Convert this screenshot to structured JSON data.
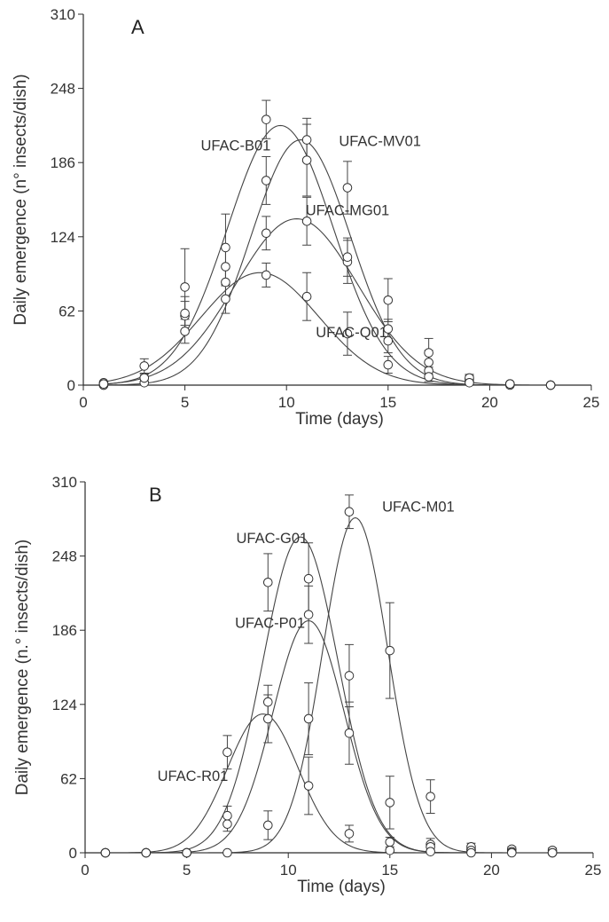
{
  "chart_data": [
    {
      "panel": "A",
      "type": "scatter",
      "xlabel": "Time (days)",
      "ylabel": "Daily emergence (n° insects/dish)",
      "xlim": [
        0,
        25
      ],
      "ylim": [
        0,
        310
      ],
      "xticks": [
        0,
        5,
        10,
        15,
        20,
        25
      ],
      "yticks": [
        0,
        62,
        124,
        186,
        248,
        310
      ],
      "grid": false,
      "legend": "none",
      "series": [
        {
          "name": "UFAC-B01",
          "peak": 217,
          "mu": 9.7,
          "sigma": 2.6,
          "label_at": [
            7.5,
            196
          ],
          "points": [
            {
              "x": 1,
              "y": 2,
              "err": 0
            },
            {
              "x": 3,
              "y": 16,
              "err": 6
            },
            {
              "x": 5,
              "y": 58,
              "err": 12
            },
            {
              "x": 7,
              "y": 115,
              "err": 28
            },
            {
              "x": 9,
              "y": 222,
              "err": 16
            },
            {
              "x": 11,
              "y": 188,
              "err": 30
            },
            {
              "x": 13,
              "y": 103,
              "err": 18
            },
            {
              "x": 15,
              "y": 47,
              "err": 8
            },
            {
              "x": 17,
              "y": 12,
              "err": 6
            },
            {
              "x": 19,
              "y": 3,
              "err": 2
            },
            {
              "x": 21,
              "y": 1,
              "err": 0
            },
            {
              "x": 23,
              "y": 0,
              "err": 0
            }
          ]
        },
        {
          "name": "UFAC-MV01",
          "peak": 205,
          "mu": 10.7,
          "sigma": 2.45,
          "label_at": [
            14.6,
            200
          ],
          "points": [
            {
              "x": 1,
              "y": 0,
              "err": 0
            },
            {
              "x": 3,
              "y": 2,
              "err": 3
            },
            {
              "x": 5,
              "y": 45,
              "err": 10
            },
            {
              "x": 7,
              "y": 86,
              "err": 14
            },
            {
              "x": 9,
              "y": 171,
              "err": 20
            },
            {
              "x": 11,
              "y": 205,
              "err": 18
            },
            {
              "x": 13,
              "y": 165,
              "err": 22
            },
            {
              "x": 15,
              "y": 71,
              "err": 18
            },
            {
              "x": 17,
              "y": 27,
              "err": 12
            },
            {
              "x": 19,
              "y": 5,
              "err": 3
            },
            {
              "x": 21,
              "y": 0,
              "err": 0
            },
            {
              "x": 23,
              "y": 0,
              "err": 0
            }
          ]
        },
        {
          "name": "UFAC-MG01",
          "peak": 139,
          "mu": 10.5,
          "sigma": 3.0,
          "label_at": [
            13.0,
            142
          ],
          "points": [
            {
              "x": 1,
              "y": 0,
              "err": 0
            },
            {
              "x": 3,
              "y": 6,
              "err": 4
            },
            {
              "x": 5,
              "y": 82,
              "err": 32
            },
            {
              "x": 7,
              "y": 99,
              "err": 16
            },
            {
              "x": 9,
              "y": 127,
              "err": 14
            },
            {
              "x": 11,
              "y": 137,
              "err": 20
            },
            {
              "x": 13,
              "y": 107,
              "err": 16
            },
            {
              "x": 15,
              "y": 37,
              "err": 10
            },
            {
              "x": 17,
              "y": 19,
              "err": 10
            },
            {
              "x": 19,
              "y": 6,
              "err": 3
            },
            {
              "x": 21,
              "y": 1,
              "err": 0
            },
            {
              "x": 23,
              "y": 0,
              "err": 0
            }
          ]
        },
        {
          "name": "UFAC-Q01",
          "peak": 94,
          "mu": 8.7,
          "sigma": 2.9,
          "label_at": [
            13.2,
            40
          ],
          "points": [
            {
              "x": 1,
              "y": 1,
              "err": 0
            },
            {
              "x": 3,
              "y": 6,
              "err": 3
            },
            {
              "x": 5,
              "y": 60,
              "err": 14
            },
            {
              "x": 7,
              "y": 72,
              "err": 12
            },
            {
              "x": 9,
              "y": 92,
              "err": 10
            },
            {
              "x": 11,
              "y": 74,
              "err": 20
            },
            {
              "x": 13,
              "y": 43,
              "err": 18
            },
            {
              "x": 15,
              "y": 17,
              "err": 7
            },
            {
              "x": 17,
              "y": 7,
              "err": 4
            },
            {
              "x": 19,
              "y": 2,
              "err": 2
            },
            {
              "x": 21,
              "y": 1,
              "err": 0
            },
            {
              "x": 23,
              "y": 0,
              "err": 0
            }
          ]
        }
      ]
    },
    {
      "panel": "B",
      "type": "scatter",
      "xlabel": "Time (days)",
      "ylabel": "Daily emergence (n.° insects/dish)",
      "xlim": [
        0,
        25
      ],
      "ylim": [
        0,
        310
      ],
      "xticks": [
        0,
        5,
        10,
        15,
        20,
        25
      ],
      "yticks": [
        0,
        62,
        124,
        186,
        248,
        310
      ],
      "grid": false,
      "legend": "none",
      "series": [
        {
          "name": "UFAC-G01",
          "peak": 264,
          "mu": 10.6,
          "sigma": 1.85,
          "label_at": [
            9.2,
            259
          ],
          "points": [
            {
              "x": 1,
              "y": 0,
              "err": 0
            },
            {
              "x": 3,
              "y": 0,
              "err": 0
            },
            {
              "x": 5,
              "y": 0,
              "err": 0
            },
            {
              "x": 7,
              "y": 84,
              "err": 14
            },
            {
              "x": 9,
              "y": 226,
              "err": 24
            },
            {
              "x": 11,
              "y": 229,
              "err": 30
            },
            {
              "x": 13,
              "y": 148,
              "err": 26
            },
            {
              "x": 15,
              "y": 42,
              "err": 22
            },
            {
              "x": 17,
              "y": 7,
              "err": 5
            },
            {
              "x": 19,
              "y": 3,
              "err": 2
            },
            {
              "x": 21,
              "y": 1,
              "err": 0
            },
            {
              "x": 23,
              "y": 0,
              "err": 0
            }
          ]
        },
        {
          "name": "UFAC-M01",
          "peak": 280,
          "mu": 13.3,
          "sigma": 1.6,
          "label_at": [
            16.4,
            285
          ],
          "points": [
            {
              "x": 1,
              "y": 0,
              "err": 0
            },
            {
              "x": 3,
              "y": 0,
              "err": 0
            },
            {
              "x": 5,
              "y": 0,
              "err": 0
            },
            {
              "x": 7,
              "y": 0,
              "err": 0
            },
            {
              "x": 9,
              "y": 23,
              "err": 12
            },
            {
              "x": 11,
              "y": 112,
              "err": 30
            },
            {
              "x": 13,
              "y": 285,
              "err": 14
            },
            {
              "x": 15,
              "y": 169,
              "err": 40
            },
            {
              "x": 17,
              "y": 47,
              "err": 14
            },
            {
              "x": 19,
              "y": 5,
              "err": 3
            },
            {
              "x": 21,
              "y": 3,
              "err": 2
            },
            {
              "x": 23,
              "y": 2,
              "err": 2
            }
          ]
        },
        {
          "name": "UFAC-P01",
          "peak": 194,
          "mu": 11.0,
          "sigma": 1.75,
          "label_at": [
            9.1,
            188
          ],
          "points": [
            {
              "x": 1,
              "y": 0,
              "err": 0
            },
            {
              "x": 3,
              "y": 0,
              "err": 0
            },
            {
              "x": 5,
              "y": 0,
              "err": 0
            },
            {
              "x": 7,
              "y": 24,
              "err": 6
            },
            {
              "x": 9,
              "y": 126,
              "err": 14
            },
            {
              "x": 11,
              "y": 199,
              "err": 24
            },
            {
              "x": 13,
              "y": 100,
              "err": 26
            },
            {
              "x": 15,
              "y": 9,
              "err": 4
            },
            {
              "x": 17,
              "y": 5,
              "err": 3
            },
            {
              "x": 19,
              "y": 2,
              "err": 1
            },
            {
              "x": 21,
              "y": 1,
              "err": 0
            },
            {
              "x": 23,
              "y": 0,
              "err": 0
            }
          ]
        },
        {
          "name": "UFAC-R01",
          "peak": 116,
          "mu": 8.75,
          "sigma": 1.75,
          "label_at": [
            5.3,
            60
          ],
          "points": [
            {
              "x": 1,
              "y": 0,
              "err": 0
            },
            {
              "x": 3,
              "y": 0,
              "err": 0
            },
            {
              "x": 5,
              "y": 0,
              "err": 0
            },
            {
              "x": 7,
              "y": 31,
              "err": 8
            },
            {
              "x": 9,
              "y": 112,
              "err": 20
            },
            {
              "x": 11,
              "y": 56,
              "err": 24
            },
            {
              "x": 13,
              "y": 16,
              "err": 7
            },
            {
              "x": 15,
              "y": 2,
              "err": 1
            },
            {
              "x": 17,
              "y": 1,
              "err": 0
            },
            {
              "x": 19,
              "y": 0,
              "err": 0
            },
            {
              "x": 21,
              "y": 0,
              "err": 0
            },
            {
              "x": 23,
              "y": 0,
              "err": 0
            }
          ]
        }
      ]
    }
  ]
}
